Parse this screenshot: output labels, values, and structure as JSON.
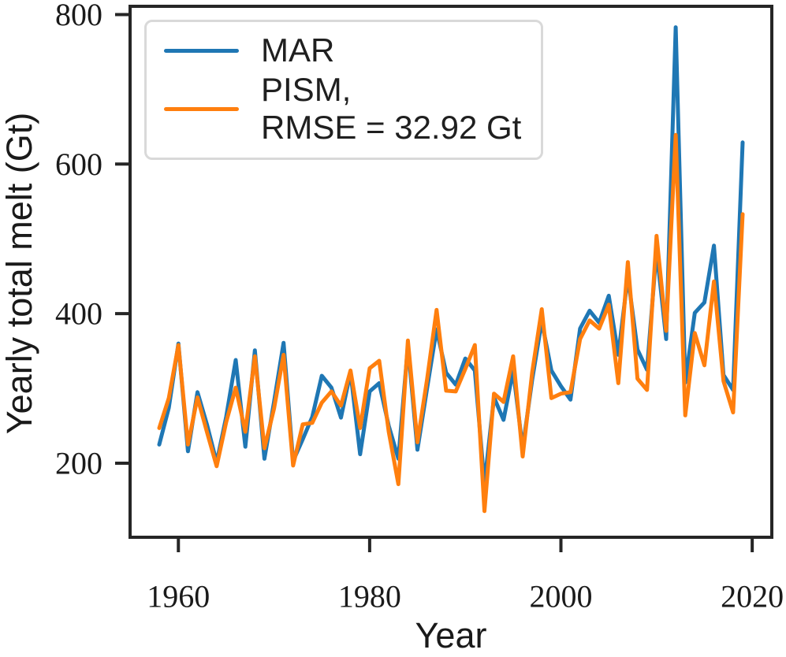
{
  "figure": {
    "background": "#ffffff",
    "text_color": "#1a1a1a",
    "spine_color": "#262626"
  },
  "chart_data": {
    "type": "line",
    "title": "",
    "xlabel": "Year",
    "ylabel": "Yearly total melt (Gt)",
    "grid": false,
    "legend_position": "upper left",
    "xlim": [
      1954.95,
      2022.05
    ],
    "ylim": [
      101,
      811
    ],
    "x_ticks": [
      1960,
      1980,
      2000,
      2020
    ],
    "y_ticks": [
      200,
      400,
      600,
      800
    ],
    "x": [
      1958,
      1959,
      1960,
      1961,
      1962,
      1963,
      1964,
      1965,
      1966,
      1967,
      1968,
      1969,
      1970,
      1971,
      1972,
      1973,
      1974,
      1975,
      1976,
      1977,
      1978,
      1979,
      1980,
      1981,
      1982,
      1983,
      1984,
      1985,
      1986,
      1987,
      1988,
      1989,
      1990,
      1991,
      1992,
      1993,
      1994,
      1995,
      1996,
      1997,
      1998,
      1999,
      2000,
      2001,
      2002,
      2003,
      2004,
      2005,
      2006,
      2007,
      2008,
      2009,
      2010,
      2011,
      2012,
      2013,
      2014,
      2015,
      2016,
      2017,
      2018,
      2019
    ],
    "series": [
      {
        "name": "MAR",
        "color": "#1f77b4",
        "values": [
          225,
          274,
          360,
          216,
          295,
          251,
          201,
          262,
          338,
          222,
          351,
          206,
          282,
          361,
          203,
          232,
          262,
          317,
          301,
          261,
          322,
          212,
          296,
          307,
          250,
          206,
          357,
          218,
          300,
          379,
          321,
          305,
          340,
          324,
          172,
          288,
          258,
          324,
          220,
          312,
          390,
          324,
          303,
          285,
          380,
          404,
          388,
          424,
          345,
          450,
          352,
          325,
          485,
          366,
          783,
          308,
          401,
          415,
          491,
          318,
          298,
          629
        ]
      },
      {
        "name": "PISM,\nRMSE = 32.92 Gt",
        "color": "#ff7f0e",
        "values": [
          247,
          287,
          358,
          225,
          288,
          241,
          196,
          255,
          301,
          242,
          343,
          220,
          273,
          345,
          197,
          252,
          254,
          281,
          296,
          277,
          324,
          247,
          327,
          337,
          242,
          172,
          364,
          228,
          312,
          405,
          297,
          296,
          326,
          358,
          136,
          293,
          282,
          343,
          209,
          322,
          406,
          287,
          293,
          295,
          366,
          391,
          380,
          412,
          307,
          469,
          313,
          298,
          504,
          377,
          639,
          264,
          374,
          331,
          443,
          310,
          268,
          533
        ]
      }
    ],
    "legend": {
      "entries": [
        {
          "label_lines": [
            "MAR"
          ],
          "color": "#1f77b4"
        },
        {
          "label_lines": [
            "PISM,",
            "RMSE = 32.92 Gt"
          ],
          "color": "#ff7f0e"
        }
      ]
    }
  }
}
